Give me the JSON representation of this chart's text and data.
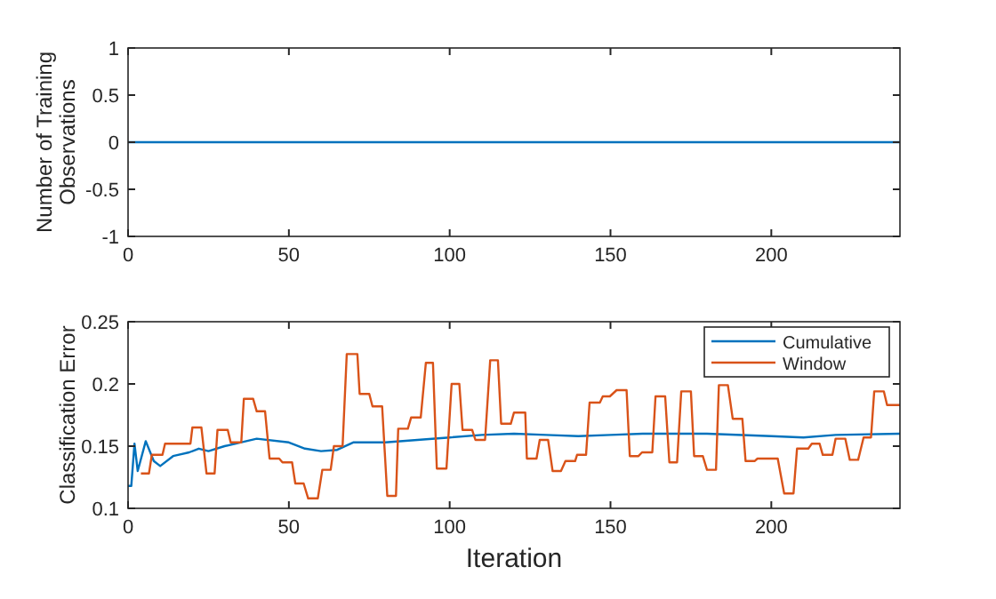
{
  "chart_data": [
    {
      "type": "line",
      "ylabel": "Number of Training Observations",
      "xlim": [
        0,
        240
      ],
      "xticks": [
        0,
        50,
        100,
        150,
        200
      ],
      "ylim": [
        -1,
        1
      ],
      "yticks": [
        1,
        0.5,
        0,
        -0.5,
        -1
      ],
      "grid": false,
      "legend": false,
      "series": [
        {
          "color": "#0072bd",
          "x": [
            0,
            240
          ],
          "values": [
            0,
            0
          ]
        }
      ]
    },
    {
      "type": "line",
      "xlabel": "Iteration",
      "ylabel": "Classification Error",
      "xlim": [
        0,
        240
      ],
      "xticks": [
        0,
        50,
        100,
        150,
        200
      ],
      "ylim": [
        0.1,
        0.25
      ],
      "yticks": [
        0.1,
        0.15,
        0.2,
        0.25
      ],
      "grid": false,
      "legend": "top right",
      "series": [
        {
          "name": "Cumulative",
          "color": "#0072bd",
          "x": [
            0,
            1,
            2,
            3,
            5.5,
            8,
            10,
            14,
            19,
            22,
            25,
            30,
            35,
            40,
            50,
            55,
            60,
            65,
            70,
            80,
            90,
            100,
            110,
            120,
            130,
            140,
            150,
            160,
            180,
            200,
            210,
            220,
            240
          ],
          "values": [
            0.118,
            0.118,
            0.152,
            0.13,
            0.154,
            0.138,
            0.134,
            0.142,
            0.145,
            0.148,
            0.146,
            0.15,
            0.153,
            0.156,
            0.153,
            0.148,
            0.146,
            0.147,
            0.153,
            0.153,
            0.155,
            0.157,
            0.159,
            0.16,
            0.159,
            0.158,
            0.159,
            0.16,
            0.16,
            0.158,
            0.157,
            0.159,
            0.16
          ]
        },
        {
          "name": "Window",
          "color": "#d95319",
          "x": [
            4,
            6.5,
            7.4,
            10.7,
            11.5,
            19.4,
            20,
            22.8,
            24.4,
            26.9,
            27.8,
            31,
            31.9,
            35.2,
            36,
            38.9,
            40,
            42.6,
            44,
            47,
            48,
            51,
            52,
            54.6,
            56,
            59,
            60.4,
            63,
            64,
            66.7,
            68,
            71.3,
            72,
            75,
            76,
            79,
            80.6,
            83.3,
            84,
            87,
            88,
            91,
            92.6,
            94.8,
            96,
            99,
            100.6,
            103,
            104,
            107,
            108,
            111,
            112.6,
            115,
            116,
            119,
            120,
            123.5,
            124,
            127,
            128,
            130.6,
            132,
            134.6,
            136,
            139,
            139.6,
            142.4,
            143.5,
            146.7,
            147.6,
            149.8,
            151.9,
            155,
            156,
            158.7,
            159.8,
            163,
            164,
            167,
            168.3,
            170.7,
            172,
            175,
            176,
            178.7,
            180,
            182.8,
            183.7,
            186.5,
            188,
            191,
            192,
            194.8,
            195.7,
            202,
            204,
            206.9,
            208,
            211.5,
            212.6,
            215,
            216,
            219,
            220,
            223,
            224.4,
            227,
            228.7,
            231,
            232,
            235,
            236,
            240
          ],
          "values": [
            0.128,
            0.128,
            0.143,
            0.143,
            0.152,
            0.152,
            0.165,
            0.165,
            0.128,
            0.128,
            0.163,
            0.163,
            0.153,
            0.153,
            0.188,
            0.188,
            0.178,
            0.178,
            0.14,
            0.14,
            0.137,
            0.137,
            0.12,
            0.12,
            0.108,
            0.108,
            0.131,
            0.131,
            0.15,
            0.15,
            0.224,
            0.224,
            0.192,
            0.192,
            0.182,
            0.182,
            0.11,
            0.11,
            0.164,
            0.164,
            0.173,
            0.173,
            0.217,
            0.217,
            0.132,
            0.132,
            0.2,
            0.2,
            0.163,
            0.163,
            0.155,
            0.155,
            0.219,
            0.219,
            0.168,
            0.168,
            0.177,
            0.177,
            0.14,
            0.14,
            0.155,
            0.155,
            0.13,
            0.13,
            0.138,
            0.138,
            0.143,
            0.143,
            0.185,
            0.185,
            0.19,
            0.19,
            0.195,
            0.195,
            0.142,
            0.142,
            0.145,
            0.145,
            0.19,
            0.19,
            0.137,
            0.137,
            0.194,
            0.194,
            0.142,
            0.142,
            0.131,
            0.131,
            0.199,
            0.199,
            0.172,
            0.172,
            0.138,
            0.138,
            0.14,
            0.14,
            0.112,
            0.112,
            0.148,
            0.148,
            0.152,
            0.152,
            0.143,
            0.143,
            0.156,
            0.156,
            0.139,
            0.139,
            0.157,
            0.157,
            0.194,
            0.194,
            0.183,
            0.183
          ]
        }
      ]
    }
  ]
}
